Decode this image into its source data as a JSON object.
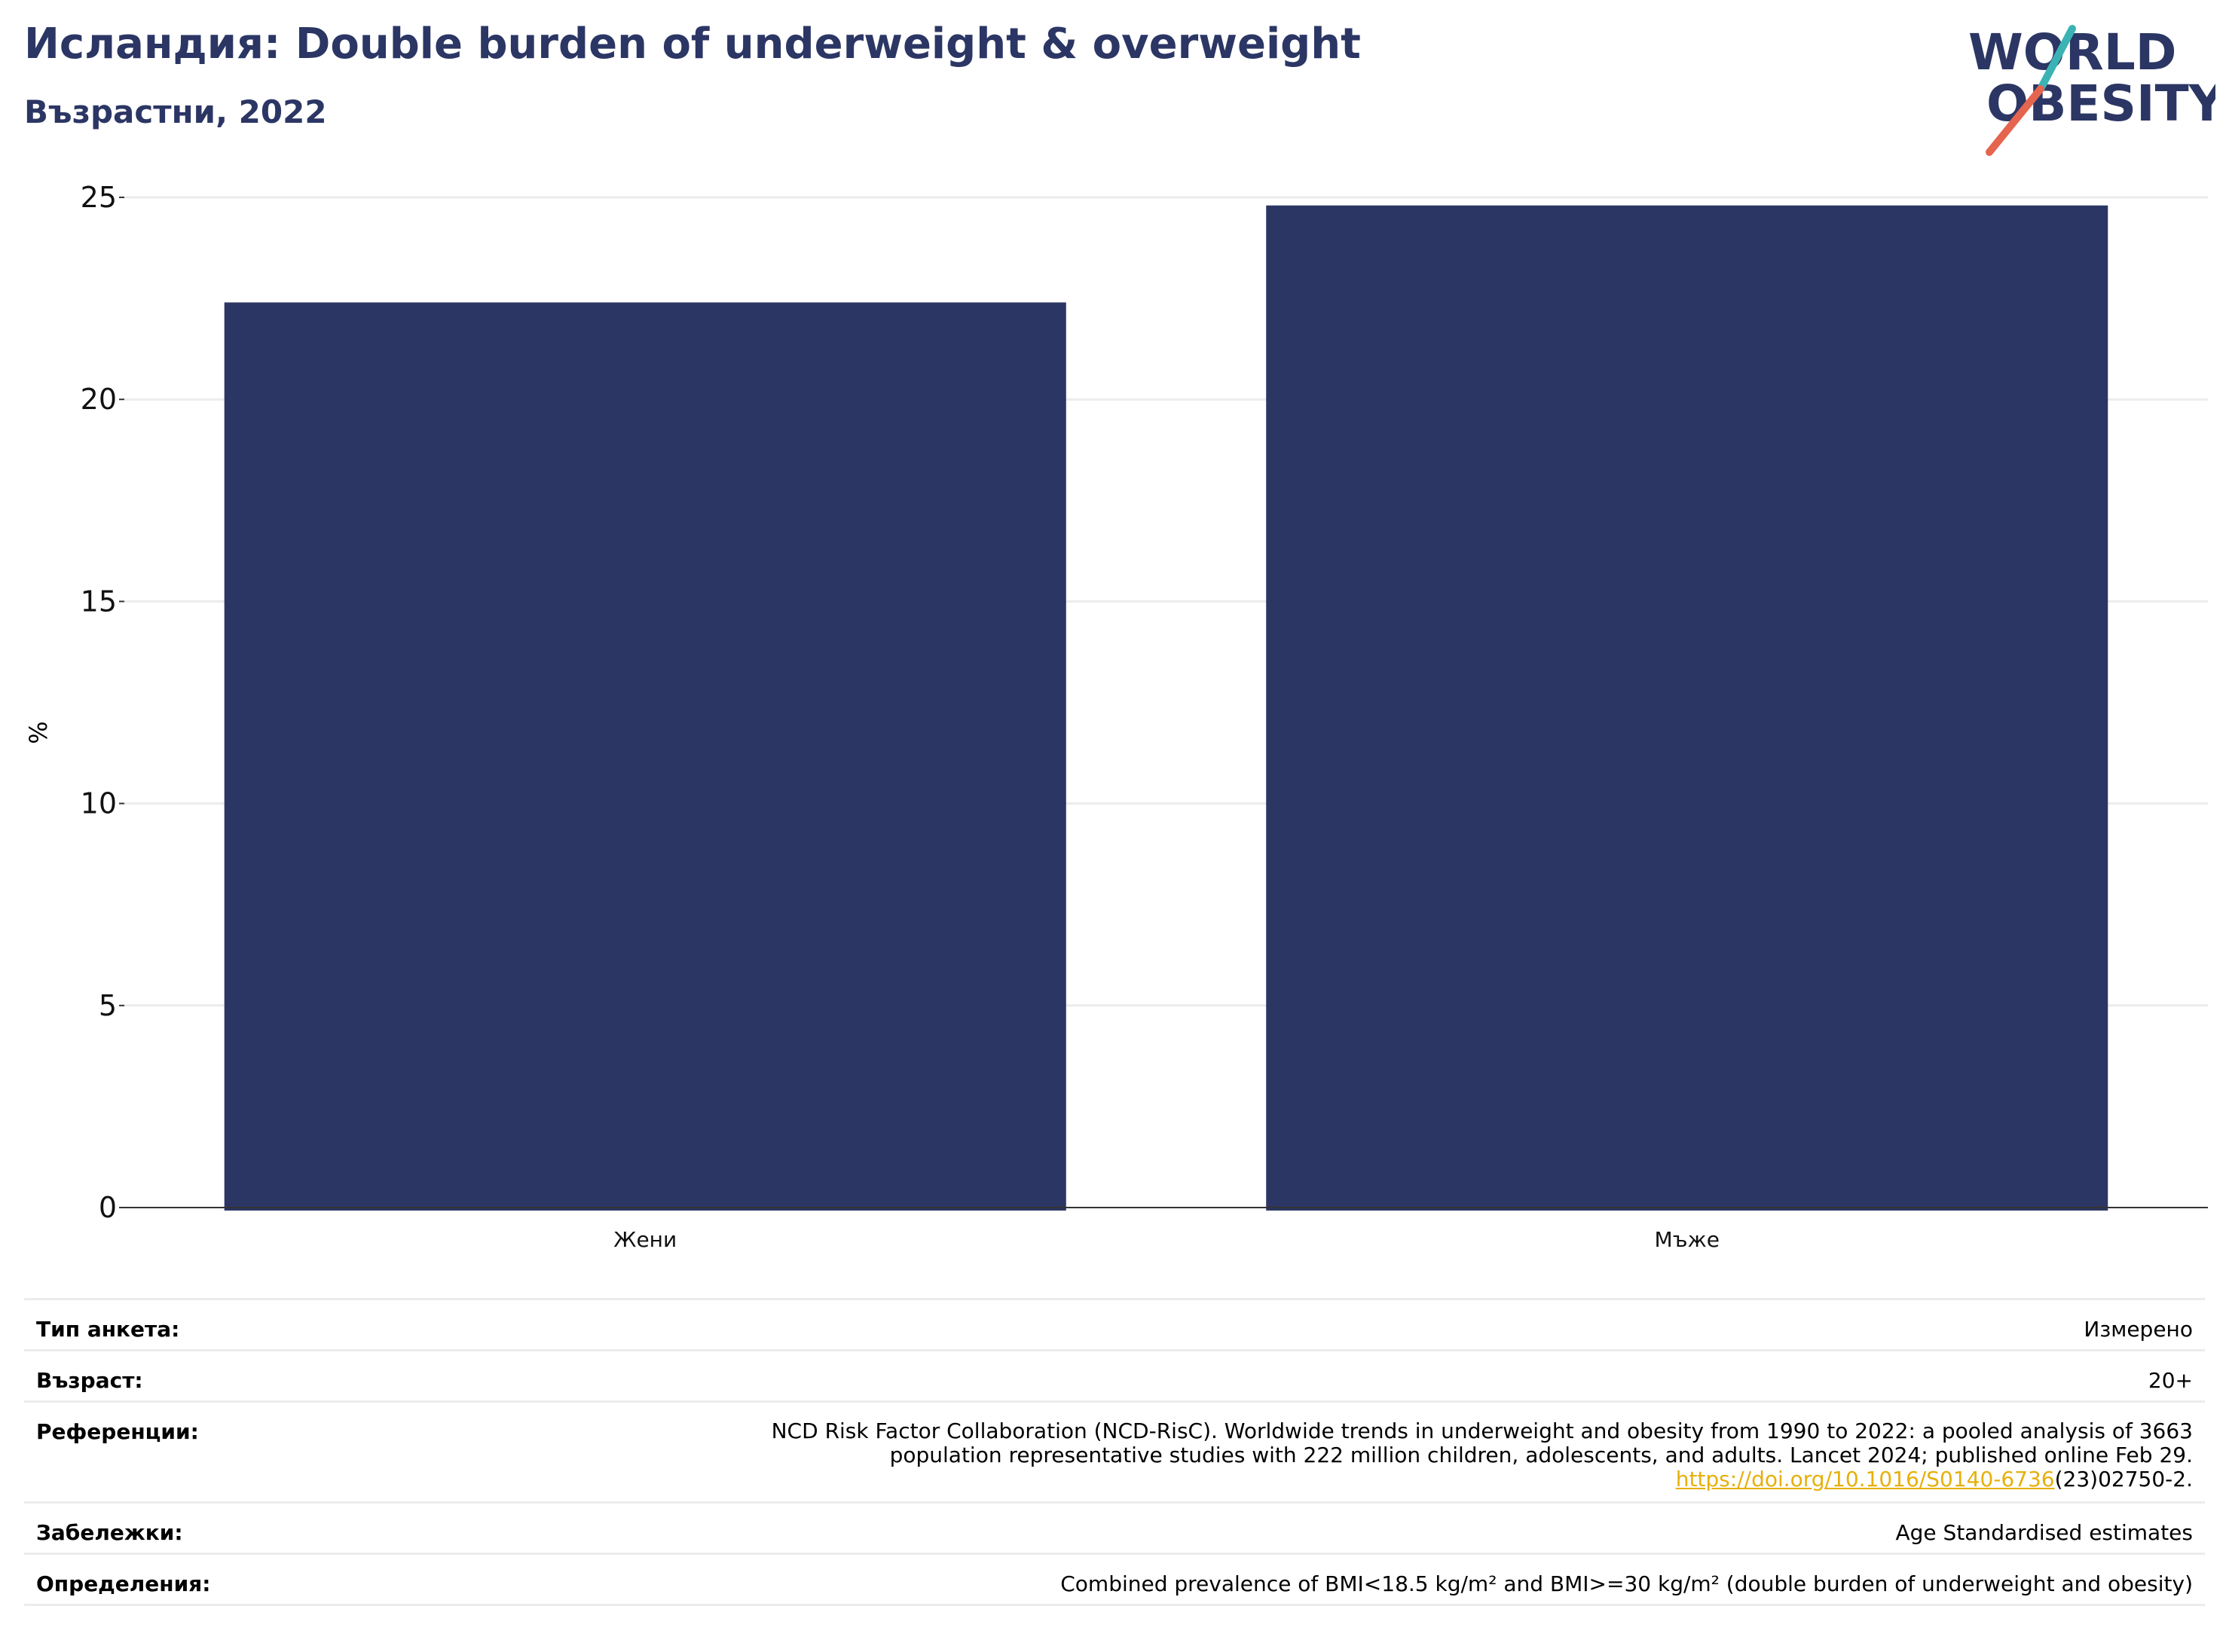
{
  "header": {
    "title": "Исландия: Double burden of underweight & overweight",
    "subtitle": "Възрастни, 2022"
  },
  "logo": {
    "line1": "WORLD",
    "line2": "OBESITY"
  },
  "colors": {
    "bar": "#2b3664",
    "title": "#2b3664",
    "link": "#e6b00c",
    "logo_teal": "#3bb3b5",
    "logo_red": "#e5654f"
  },
  "chart_data": {
    "type": "bar",
    "categories": [
      "Жени",
      "Мъже"
    ],
    "values": [
      22.4,
      24.8
    ],
    "ylabel": "%",
    "xlabel": "",
    "ylim": [
      0,
      25
    ],
    "yticks": [
      0,
      5,
      10,
      15,
      20,
      25
    ],
    "grid": true,
    "legend": "none"
  },
  "info": {
    "survey_type": {
      "label": "Тип анкета:",
      "value": "Измерено"
    },
    "age": {
      "label": "Възраст:",
      "value": "20+"
    },
    "references": {
      "label": "Референции:",
      "line1": "NCD Risk Factor Collaboration (NCD-RisC). Worldwide trends in underweight and obesity from 1990 to 2022: a pooled analysis of 3663",
      "line2": "population representative studies with 222 million children, adolescents, and adults. Lancet 2024; published online Feb 29.",
      "link": "https://doi.org/10.1016/S0140-6736",
      "link_suffix": "(23)02750-2."
    },
    "notes": {
      "label": "Забележки:",
      "value": "Age Standardised estimates"
    },
    "definitions": {
      "label": "Определения:",
      "value": "Combined prevalence of BMI<18.5 kg/m² and BMI>=30 kg/m² (double burden of underweight and obesity)"
    }
  }
}
